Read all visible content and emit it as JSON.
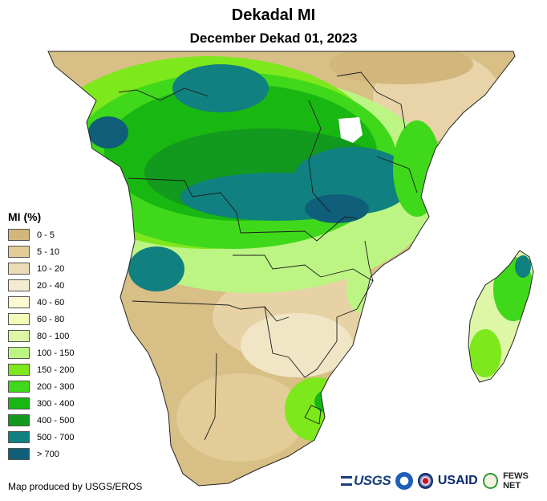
{
  "title": "Dekadal MI",
  "subtitle": "December Dekad 01, 2023",
  "legend": {
    "title": "MI (%)",
    "items": [
      {
        "label": "0 - 5",
        "color": "#d2b67c"
      },
      {
        "label": "5 - 10",
        "color": "#e3cc97"
      },
      {
        "label": "10 - 20",
        "color": "#ecdcb6"
      },
      {
        "label": "20 - 40",
        "color": "#f4ebd0"
      },
      {
        "label": "40 - 60",
        "color": "#fbf9d4"
      },
      {
        "label": "60 - 80",
        "color": "#f2fbb8"
      },
      {
        "label": "80 - 100",
        "color": "#ddf7a6"
      },
      {
        "label": "100 - 150",
        "color": "#bdf584"
      },
      {
        "label": "150 - 200",
        "color": "#7de81c"
      },
      {
        "label": "200 - 300",
        "color": "#40d81a"
      },
      {
        "label": "300 - 400",
        "color": "#19b711"
      },
      {
        "label": "400 - 500",
        "color": "#119a1d"
      },
      {
        "label": "500 - 700",
        "color": "#118080"
      },
      {
        "label": "> 700",
        "color": "#0f5f7a"
      }
    ]
  },
  "credit": "Map produced by USGS/EROS",
  "logos": {
    "usgs": "USGS",
    "usaid": "USAID",
    "fewsnet": "FEWS NET"
  }
}
